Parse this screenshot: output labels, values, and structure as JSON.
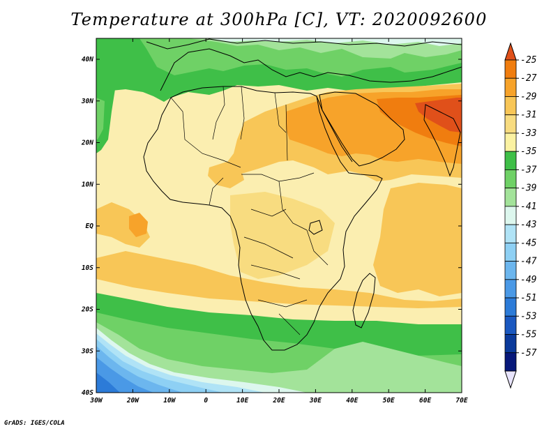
{
  "map": {
    "title": "Temperature at 300hPa [C], VT: 2020092600",
    "credit": "GrADS: IGES/COLA",
    "lon_ticks": [
      "30W",
      "20W",
      "10W",
      "0",
      "10E",
      "20E",
      "30E",
      "40E",
      "50E",
      "60E",
      "70E"
    ],
    "lat_ticks": [
      "40N",
      "30N",
      "20N",
      "10N",
      "EQ",
      "10S",
      "20S",
      "30S",
      "40S"
    ],
    "colorbar": {
      "labels": [
        "-25",
        "-27",
        "-29",
        "-31",
        "-33",
        "-35",
        "-37",
        "-39",
        "-41",
        "-43",
        "-45",
        "-47",
        "-49",
        "-51",
        "-53",
        "-55",
        "-57"
      ],
      "colors": [
        "#e0501a",
        "#f07d0f",
        "#f7a32a",
        "#f8c657",
        "#f8dc80",
        "#fbf2a2",
        "#3fbf48",
        "#6fd166",
        "#a3e39a",
        "#ddf7ee",
        "#b0e3f6",
        "#8ed0f4",
        "#6cb6ee",
        "#4a99e6",
        "#2c7bd8",
        "#1a58c0",
        "#0b3a9b",
        "#07187a",
        "#e8e4fc"
      ]
    }
  }
}
